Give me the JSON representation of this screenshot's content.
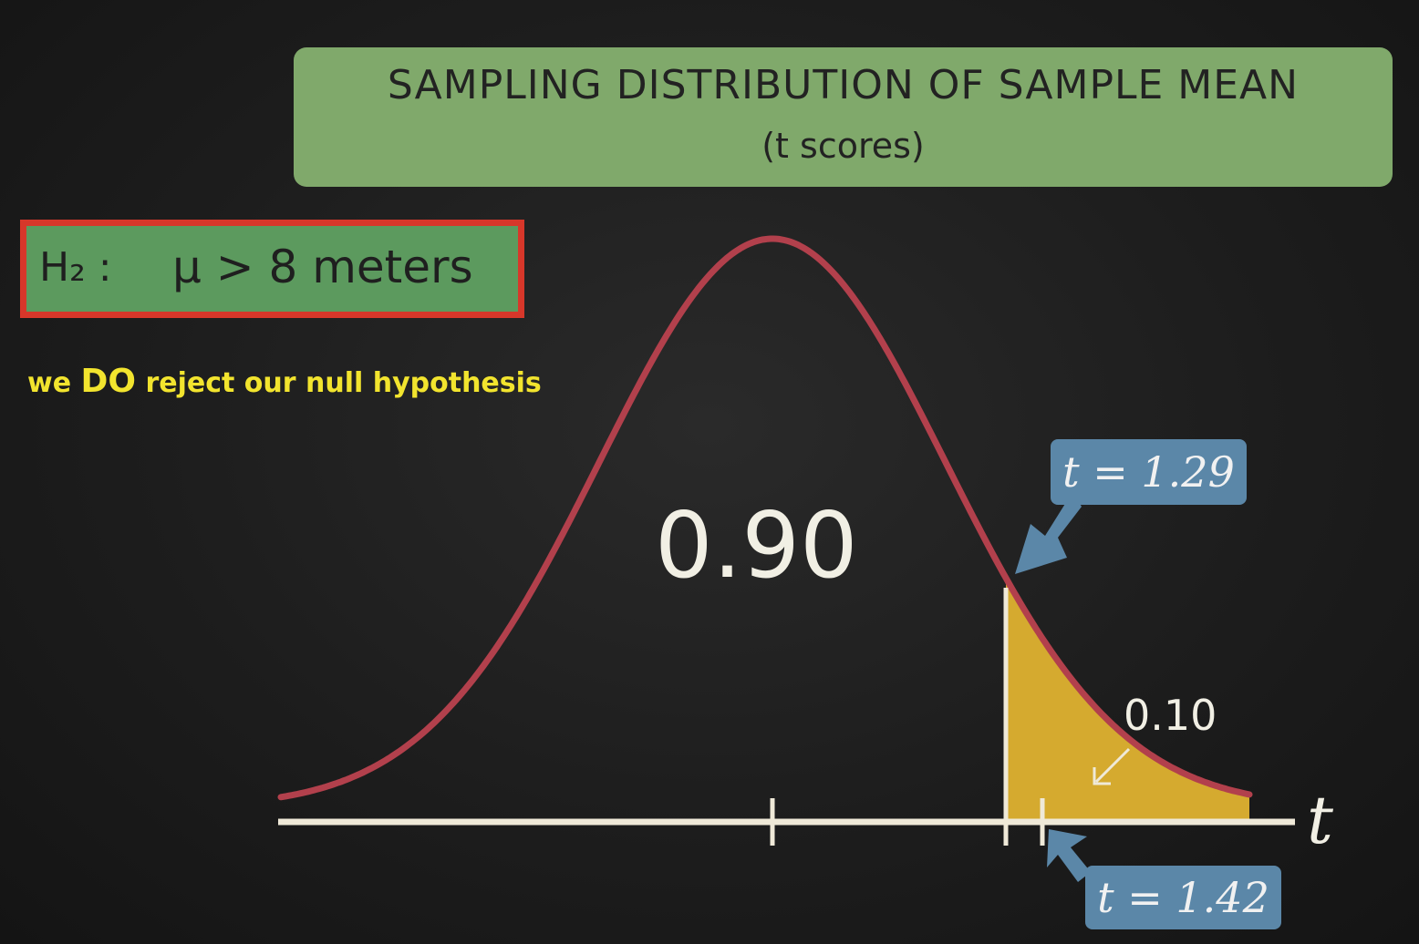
{
  "title": {
    "main": "SAMPLING DISTRIBUTION OF SAMPLE MEAN",
    "sub": "(t scores)"
  },
  "hypothesis": {
    "label": "H₂ :",
    "statement": "μ > 8 meters"
  },
  "conclusion": {
    "prefix": "we ",
    "emphasis": "DO",
    "suffix": " reject our null hypothesis"
  },
  "diagram": {
    "center_probability": "0.90",
    "tail_probability": "0.10",
    "critical_callout": "t = 1.29",
    "observed_callout": "t = 1.42",
    "axis_label": "t",
    "critical_t": 1.29,
    "observed_t": 1.42,
    "colors": {
      "curve": "#b2404c",
      "shaded_tail": "#d5aa2f",
      "axis": "#efe9d8",
      "callout": "#5b87a8",
      "title_box": "#80a96b",
      "hypothesis_box": "#5c9a5e",
      "hypothesis_border": "#d7372a",
      "conclusion_text": "#f2e42e"
    }
  }
}
